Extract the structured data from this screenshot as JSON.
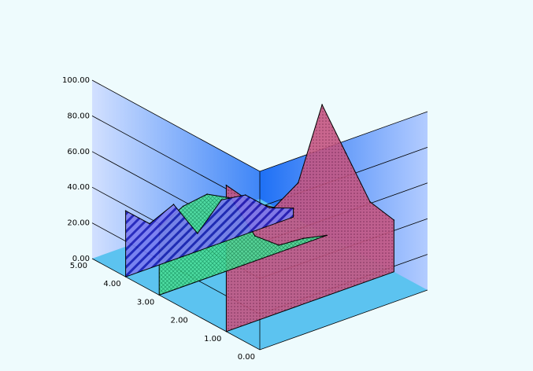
{
  "chart_data": {
    "type": "area",
    "view": "3d-ribbon",
    "grid": true,
    "legend": "none",
    "title": "",
    "xlabel": "",
    "ylabel": "",
    "ylim": [
      0,
      100
    ],
    "y_ticks": [
      "0.00",
      "20.00",
      "40.00",
      "60.00",
      "80.00",
      "100.00"
    ],
    "depth_ticks": [
      "0.00",
      "1.00",
      "2.00",
      "3.00",
      "4.00",
      "5.00"
    ],
    "series": [
      {
        "color": "#4a4ae8",
        "pattern": "diagonal-hatch",
        "values": [
          37,
          25,
          31,
          10,
          24,
          22,
          10,
          5
        ]
      },
      {
        "color": "#44dd88",
        "pattern": "crosshatch",
        "values": [
          38,
          45,
          47,
          40,
          14,
          4,
          3,
          0
        ]
      },
      {
        "color": "#c8507e",
        "pattern": "dots",
        "values": [
          82,
          68,
          60,
          69,
          108,
          76,
          44,
          29
        ]
      }
    ],
    "colors": {
      "background": "#eefbfd",
      "wall_light": "#c2d6ff",
      "wall_dark": "#1e70f5",
      "floor": "#5cc3f0"
    }
  }
}
